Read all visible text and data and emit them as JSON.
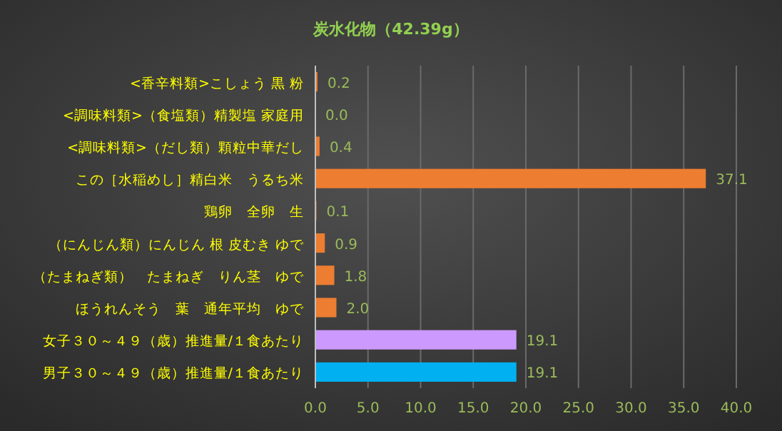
{
  "chart_data": {
    "type": "bar",
    "orientation": "horizontal",
    "title": "炭水化物（42.39g）",
    "categories": [
      "<香辛料類>こしょう 黒 粉",
      "<調味料類>（食塩類）精製塩 家庭用",
      "<調味料類>（だし類）顆粒中華だし",
      "この［水稲めし］精白米　うるち米",
      "鶏卵　全卵　生",
      "（にんじん類）にんじん 根 皮むき ゆで",
      "（たまねぎ類）　たまねぎ　りん茎　ゆで",
      "ほうれんそう　葉　通年平均　ゆで",
      "女子３０～４９（歳）推進量/１食あたり",
      "男子３０～４９（歳）推進量/１食あたり"
    ],
    "values": [
      0.2,
      0.0,
      0.4,
      37.1,
      0.1,
      0.9,
      1.8,
      2.0,
      19.1,
      19.1
    ],
    "value_labels": [
      "0.2",
      "0.0",
      "0.4",
      "37.1",
      "0.1",
      "0.9",
      "1.8",
      "2.0",
      "19.1",
      "19.1"
    ],
    "colors": [
      "#ed7d31",
      "#ed7d31",
      "#ed7d31",
      "#ed7d31",
      "#ed7d31",
      "#ed7d31",
      "#ed7d31",
      "#ed7d31",
      "#cc99ff",
      "#00b0f0"
    ],
    "xlim": [
      0,
      40
    ],
    "xticks": [
      {
        "value": 0,
        "label": "0.0"
      },
      {
        "value": 5,
        "label": "5.0"
      },
      {
        "value": 10,
        "label": "10.0"
      },
      {
        "value": 15,
        "label": "15.0"
      },
      {
        "value": 20,
        "label": "20.0"
      },
      {
        "value": 25,
        "label": "25.0"
      },
      {
        "value": 30,
        "label": "30.0"
      },
      {
        "value": 35,
        "label": "35.0"
      },
      {
        "value": 40,
        "label": "40.0"
      }
    ],
    "grid": "x"
  }
}
